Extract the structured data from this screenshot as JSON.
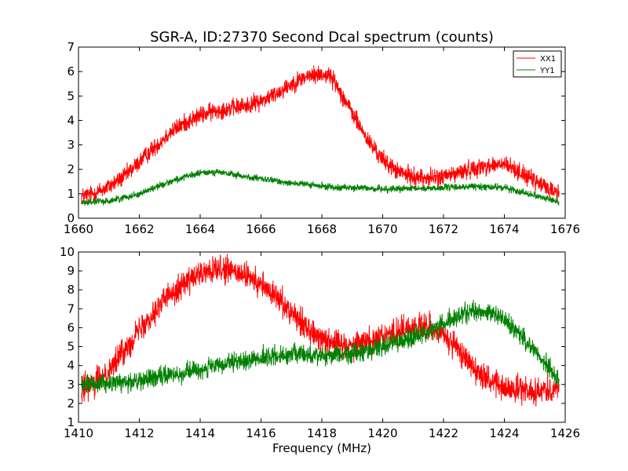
{
  "chart_data": [
    {
      "type": "line",
      "title": "SGR-A, ID:27370 Second Dcal spectrum (counts)",
      "xlabel": "",
      "ylabel": "",
      "xlim": [
        1660,
        1676
      ],
      "ylim": [
        0,
        7
      ],
      "xticks": [
        "1660",
        "1662",
        "1664",
        "1666",
        "1668",
        "1670",
        "1672",
        "1674",
        "1676"
      ],
      "yticks": [
        "0",
        "1",
        "2",
        "3",
        "4",
        "5",
        "6",
        "7"
      ],
      "legend": {
        "position": "top-right",
        "entries": [
          "XX1",
          "YY1"
        ]
      },
      "series": [
        {
          "name": "XX1",
          "color": "#ff0000",
          "noise": 0.18,
          "x": [
            1660.1,
            1660.5,
            1661.0,
            1661.5,
            1662.0,
            1662.5,
            1663.0,
            1663.5,
            1664.0,
            1664.5,
            1665.0,
            1665.5,
            1666.0,
            1666.5,
            1667.0,
            1667.5,
            1668.0,
            1668.3,
            1668.6,
            1669.0,
            1669.5,
            1670.0,
            1670.5,
            1671.0,
            1671.5,
            1672.0,
            1672.5,
            1673.0,
            1673.5,
            1674.0,
            1674.5,
            1675.0,
            1675.5,
            1675.8
          ],
          "y": [
            0.9,
            1.0,
            1.3,
            1.7,
            2.3,
            2.9,
            3.5,
            3.9,
            4.2,
            4.4,
            4.5,
            4.6,
            4.8,
            5.1,
            5.5,
            5.8,
            5.9,
            5.8,
            5.2,
            4.3,
            3.2,
            2.4,
            1.9,
            1.7,
            1.65,
            1.7,
            1.85,
            2.05,
            2.15,
            2.2,
            1.9,
            1.5,
            1.2,
            1.0
          ]
        },
        {
          "name": "YY1",
          "color": "#008000",
          "noise": 0.07,
          "x": [
            1660.1,
            1661.0,
            1662.0,
            1663.0,
            1664.0,
            1664.5,
            1665.0,
            1666.0,
            1667.0,
            1668.0,
            1669.0,
            1670.0,
            1671.0,
            1672.0,
            1673.0,
            1674.0,
            1675.0,
            1675.8
          ],
          "y": [
            0.65,
            0.7,
            1.0,
            1.5,
            1.85,
            1.9,
            1.8,
            1.6,
            1.45,
            1.3,
            1.25,
            1.2,
            1.2,
            1.25,
            1.3,
            1.25,
            0.95,
            0.65
          ]
        }
      ]
    },
    {
      "type": "line",
      "title": "",
      "xlabel": "Frequency (MHz)",
      "ylabel": "",
      "xlim": [
        1410,
        1426
      ],
      "ylim": [
        1,
        10
      ],
      "xticks": [
        "1410",
        "1412",
        "1414",
        "1416",
        "1418",
        "1420",
        "1422",
        "1424",
        "1426"
      ],
      "yticks": [
        "1",
        "2",
        "3",
        "4",
        "5",
        "6",
        "7",
        "8",
        "9",
        "10"
      ],
      "series": [
        {
          "name": "XX1",
          "color": "#ff0000",
          "noise": 0.35,
          "x": [
            1410.1,
            1410.5,
            1411.0,
            1411.5,
            1412.0,
            1412.5,
            1413.0,
            1413.5,
            1414.0,
            1414.5,
            1415.0,
            1415.5,
            1416.0,
            1416.5,
            1417.0,
            1417.5,
            1418.0,
            1418.5,
            1419.0,
            1419.5,
            1420.0,
            1420.5,
            1421.0,
            1421.5,
            1422.0,
            1422.5,
            1423.0,
            1423.5,
            1424.0,
            1424.5,
            1425.0,
            1425.8
          ],
          "y": [
            2.8,
            3.0,
            3.8,
            4.8,
            5.9,
            6.9,
            7.8,
            8.4,
            8.8,
            9.0,
            9.0,
            8.7,
            8.3,
            7.6,
            6.9,
            6.0,
            5.5,
            5.2,
            5.1,
            5.3,
            5.6,
            5.8,
            6.0,
            6.0,
            5.6,
            4.8,
            3.9,
            3.2,
            2.8,
            2.7,
            2.7,
            2.8
          ]
        },
        {
          "name": "YY1",
          "color": "#008000",
          "noise": 0.25,
          "x": [
            1410.1,
            1411.0,
            1412.0,
            1413.0,
            1414.0,
            1415.0,
            1416.0,
            1417.0,
            1418.0,
            1419.0,
            1420.0,
            1421.0,
            1421.5,
            1422.0,
            1422.5,
            1423.0,
            1423.5,
            1424.0,
            1424.5,
            1425.0,
            1425.5,
            1425.8
          ],
          "y": [
            3.0,
            3.05,
            3.2,
            3.5,
            3.8,
            4.1,
            4.4,
            4.6,
            4.55,
            4.6,
            5.0,
            5.5,
            5.8,
            6.2,
            6.6,
            6.9,
            6.8,
            6.4,
            5.7,
            4.8,
            3.8,
            3.3
          ]
        }
      ]
    }
  ]
}
